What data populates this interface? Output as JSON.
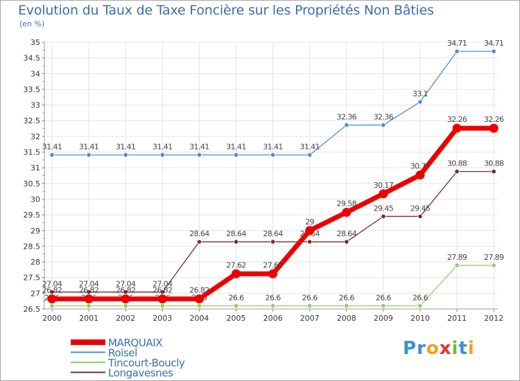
{
  "chart_data": {
    "type": "line",
    "title": "Evolution du Taux de Taxe Foncière sur les Propriétés Non Bâties",
    "unit_label": "(en %)",
    "categories": [
      "2000",
      "2001",
      "2002",
      "2003",
      "2004",
      "2005",
      "2006",
      "2007",
      "2008",
      "2009",
      "2010",
      "2011",
      "2012"
    ],
    "ylim": [
      26.5,
      35
    ],
    "y_ticks": [
      "26.5",
      "27",
      "27.5",
      "28",
      "28.5",
      "29",
      "29.5",
      "30",
      "30.5",
      "31",
      "31.5",
      "32",
      "32.5",
      "33",
      "33.5",
      "34",
      "34.5",
      "35"
    ],
    "grid": true,
    "legend_position": "bottom-left",
    "series": [
      {
        "name": "MARQUAIX",
        "color": "#ee0000",
        "values": [
          26.82,
          26.82,
          26.82,
          26.82,
          26.82,
          27.62,
          27.62,
          29,
          29.58,
          30.17,
          30.77,
          32.26,
          32.26
        ],
        "labels": [
          "26.82",
          "26.82",
          "26.82",
          "26.82",
          "26.82",
          "27.62",
          "27.62",
          "29",
          "29.58",
          "30.17",
          "30.77",
          "32.26",
          "32.26"
        ]
      },
      {
        "name": "Roisel",
        "color": "#4a8fd0",
        "values": [
          31.41,
          31.41,
          31.41,
          31.41,
          31.41,
          31.41,
          31.41,
          31.41,
          32.36,
          32.36,
          33.1,
          34.71,
          34.71
        ],
        "labels": [
          "31.41",
          "31.41",
          "31.41",
          "31.41",
          "31.41",
          "31.41",
          "31.41",
          "31.41",
          "32.36",
          "32.36",
          "33.1",
          "34.71",
          "34.71"
        ]
      },
      {
        "name": "Tincourt-Boucly",
        "color": "#8fd060",
        "values": [
          26.6,
          26.6,
          26.6,
          26.6,
          26.6,
          26.6,
          26.6,
          26.6,
          26.6,
          26.6,
          26.6,
          27.89,
          27.89
        ],
        "labels": [
          "26.6",
          "26.6",
          "26.6",
          "26.6",
          "26.6",
          "26.6",
          "26.6",
          "26.6",
          "26.6",
          "26.6",
          "26.6",
          "27.89",
          "27.89"
        ]
      },
      {
        "name": "Longavesnes",
        "color": "#7a2a2a",
        "values": [
          27.04,
          27.04,
          27.04,
          27.04,
          28.64,
          28.64,
          28.64,
          28.64,
          28.64,
          29.45,
          29.45,
          30.88,
          30.88
        ],
        "labels": [
          "27.04",
          "27.04",
          "27.04",
          "27.04",
          "28.64",
          "28.64",
          "28.64",
          "28.64",
          "28.64",
          "29.45",
          "29.45",
          "30.88",
          "30.88"
        ]
      }
    ]
  },
  "logo": {
    "text": "Proxiti",
    "letters": [
      {
        "ch": "P",
        "color": "#3a8fd8"
      },
      {
        "ch": "r",
        "color": "#3a8fd8"
      },
      {
        "ch": "o",
        "color": "#f0a020"
      },
      {
        "ch": "x",
        "color": "#e83030"
      },
      {
        "ch": "i",
        "color": "#60c040"
      },
      {
        "ch": "t",
        "color": "#3a8fd8"
      },
      {
        "ch": "i",
        "color": "#f0a020"
      }
    ]
  }
}
